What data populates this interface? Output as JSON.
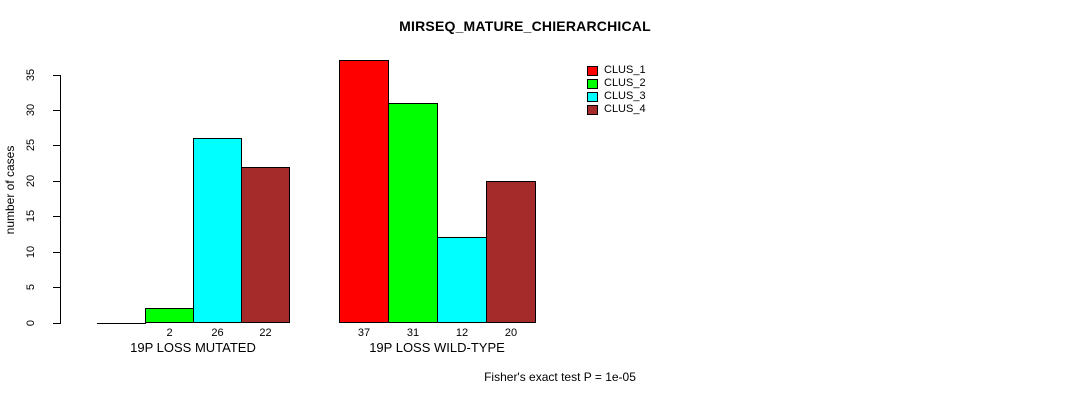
{
  "title": "MIRSEQ_MATURE_CHIERARCHICAL",
  "chart_data": {
    "type": "bar",
    "title": "MIRSEQ_MATURE_CHIERARCHICAL",
    "xlabel": "",
    "ylabel": "number of cases",
    "ylim": [
      0,
      37
    ],
    "yticks": [
      0,
      5,
      10,
      15,
      20,
      25,
      30,
      35
    ],
    "grid": false,
    "legend_position": "top-right",
    "categories": [
      "19P LOSS MUTATED",
      "19P LOSS WILD-TYPE"
    ],
    "series": [
      {
        "name": "CLUS_1",
        "color": "#ff0000",
        "values": [
          0,
          37
        ]
      },
      {
        "name": "CLUS_2",
        "color": "#00ff00",
        "values": [
          2,
          31
        ]
      },
      {
        "name": "CLUS_3",
        "color": "#00ffff",
        "values": [
          26,
          12
        ]
      },
      {
        "name": "CLUS_4",
        "color": "#a52a2a",
        "values": [
          22,
          20
        ]
      }
    ],
    "bar_labels": [
      [
        "",
        "2",
        "26",
        "22"
      ],
      [
        "37",
        "31",
        "12",
        "20"
      ]
    ],
    "annotation": "Fisher's exact test P = 1e-05"
  },
  "colors": {
    "background": "#ffffff",
    "axis": "#000000",
    "text": "#000000"
  }
}
